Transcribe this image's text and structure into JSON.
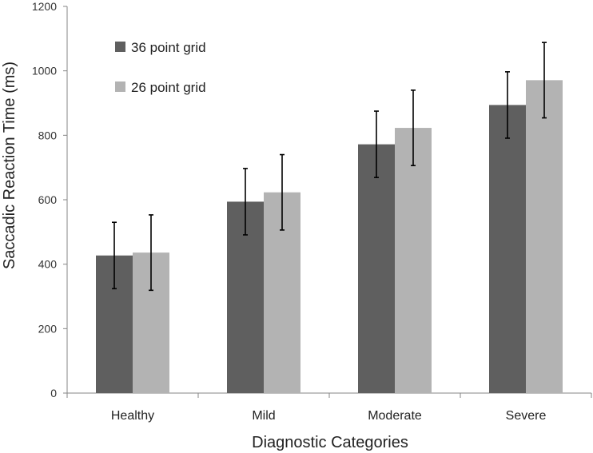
{
  "chart_data": {
    "type": "bar",
    "title": "",
    "xlabel": "Diagnostic Categories",
    "ylabel": "Saccadic Reaction Time  (ms)",
    "ylim": [
      0,
      1200
    ],
    "yticks": [
      0,
      200,
      400,
      600,
      800,
      1000,
      1200
    ],
    "categories": [
      "Healthy",
      "Mild",
      "Moderate",
      "Severe"
    ],
    "series": [
      {
        "name": "36 point grid",
        "color": "#5f5f5f",
        "values": [
          427,
          594,
          772,
          894
        ],
        "error": [
          103,
          103,
          103,
          103
        ]
      },
      {
        "name": "26 point grid",
        "color": "#b3b3b3",
        "values": [
          436,
          623,
          823,
          971
        ],
        "error": [
          117,
          117,
          117,
          117
        ]
      }
    ],
    "grid": false,
    "legend_position": "top-left",
    "error_bars": true
  }
}
